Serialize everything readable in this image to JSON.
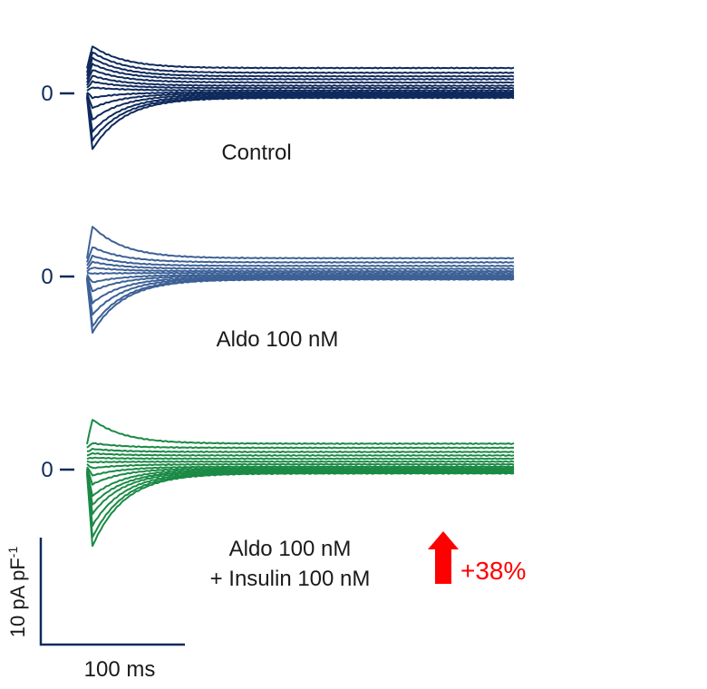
{
  "figure": {
    "panels": [
      {
        "id": "control",
        "color": "#0f2a5c",
        "zero_label": "0",
        "label_lines": [
          "Control"
        ]
      },
      {
        "id": "aldo",
        "color": "#3d6196",
        "zero_label": "0",
        "label_lines": [
          "Aldo 100 nM"
        ]
      },
      {
        "id": "aldo-insulin",
        "color": "#1a8a45",
        "zero_label": "0",
        "label_lines": [
          "Aldo 100 nM",
          "+ Insulin 100 nM"
        ]
      }
    ],
    "scale_bar": {
      "y_label": "10 pA pF-1",
      "y_text": "10 pA pF",
      "y_superscript": "-1",
      "x_label": "100 ms",
      "color": "#0f2a5c"
    },
    "annotation": {
      "text": "+38%",
      "color": "#ff0000"
    }
  },
  "chart_data": [
    {
      "type": "line",
      "title": "Control",
      "xlabel": "",
      "ylabel": "",
      "x_unit": "ms",
      "y_unit": "pA/pF",
      "series": [
        {
          "steady": 8.6,
          "peak": 16
        },
        {
          "steady": 7.0,
          "peak": 14
        },
        {
          "steady": 5.8,
          "peak": 12
        },
        {
          "steady": 4.8,
          "peak": 10
        },
        {
          "steady": 3.7,
          "peak": 8
        },
        {
          "steady": 2.6,
          "peak": 6
        },
        {
          "steady": 1.8,
          "peak": 4
        },
        {
          "steady": 1.0,
          "peak": 2
        },
        {
          "steady": 0.4,
          "peak": -1.5
        },
        {
          "steady": 0.0,
          "peak": -5
        },
        {
          "steady": -0.4,
          "peak": -9
        },
        {
          "steady": -0.8,
          "peak": -13
        },
        {
          "steady": -1.2,
          "peak": -16
        },
        {
          "steady": -1.5,
          "peak": -19
        }
      ]
    },
    {
      "type": "line",
      "title": "Aldo 100 nM",
      "xlabel": "",
      "ylabel": "",
      "x_unit": "ms",
      "y_unit": "pA/pF",
      "series": [
        {
          "steady": 6.2,
          "peak": 17
        },
        {
          "steady": 4.8,
          "peak": 10
        },
        {
          "steady": 3.6,
          "peak": 7
        },
        {
          "steady": 2.6,
          "peak": 5
        },
        {
          "steady": 1.8,
          "peak": 3
        },
        {
          "steady": 1.2,
          "peak": 1
        },
        {
          "steady": 0.6,
          "peak": -2
        },
        {
          "steady": 0.2,
          "peak": -5
        },
        {
          "steady": -0.2,
          "peak": -9
        },
        {
          "steady": -0.5,
          "peak": -13
        },
        {
          "steady": -0.8,
          "peak": -17
        },
        {
          "steady": -1.0,
          "peak": -19
        }
      ]
    },
    {
      "type": "line",
      "title": "Aldo 100 nM + Insulin 100 nM",
      "xlabel": "",
      "ylabel": "",
      "x_unit": "ms",
      "y_unit": "pA/pF",
      "series": [
        {
          "steady": 8.8,
          "peak": 17
        },
        {
          "steady": 7.4,
          "peak": 9
        },
        {
          "steady": 6.0,
          "peak": 7
        },
        {
          "steady": 4.8,
          "peak": 5.5
        },
        {
          "steady": 3.7,
          "peak": 4
        },
        {
          "steady": 2.7,
          "peak": 2.5
        },
        {
          "steady": 1.8,
          "peak": 0.5
        },
        {
          "steady": 1.0,
          "peak": -2
        },
        {
          "steady": 0.5,
          "peak": -5
        },
        {
          "steady": 0.1,
          "peak": -9
        },
        {
          "steady": -0.3,
          "peak": -12
        },
        {
          "steady": -0.6,
          "peak": -15
        },
        {
          "steady": -0.9,
          "peak": -19
        },
        {
          "steady": -1.1,
          "peak": -23
        },
        {
          "steady": -1.3,
          "peak": -26
        }
      ]
    }
  ]
}
